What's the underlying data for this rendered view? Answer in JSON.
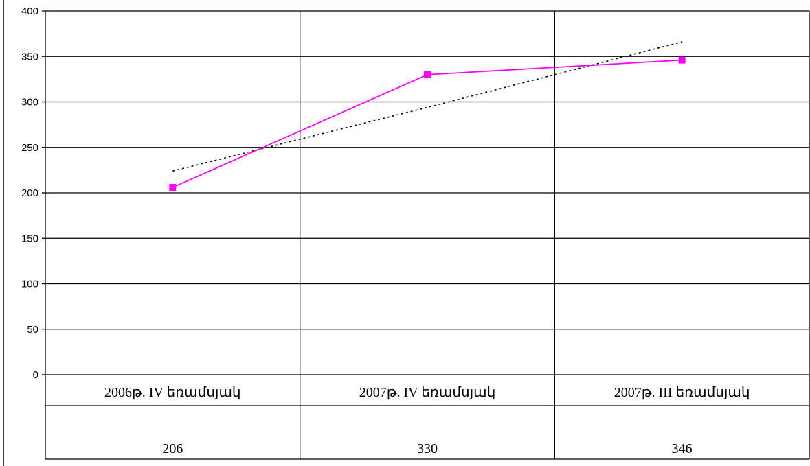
{
  "chart_data": {
    "type": "line",
    "title": "",
    "xlabel": "",
    "ylabel": "",
    "ylim": [
      0,
      400
    ],
    "yticks": [
      0,
      50,
      100,
      150,
      200,
      250,
      300,
      350,
      400
    ],
    "categories": [
      "2006թ. IV եռամսյակ",
      "2007թ. IV եռամսյակ",
      "2007թ. III եռամսյակ"
    ],
    "series": [
      {
        "values": [
          206,
          330,
          346
        ],
        "color": "#ff00ff",
        "marker": "square"
      }
    ],
    "trendline": {
      "type": "linear",
      "values": [
        224,
        294,
        366
      ],
      "color": "#000000",
      "style": "dotted"
    },
    "data_table": [
      "206",
      "330",
      "346"
    ],
    "grid": true,
    "legend": "none"
  }
}
